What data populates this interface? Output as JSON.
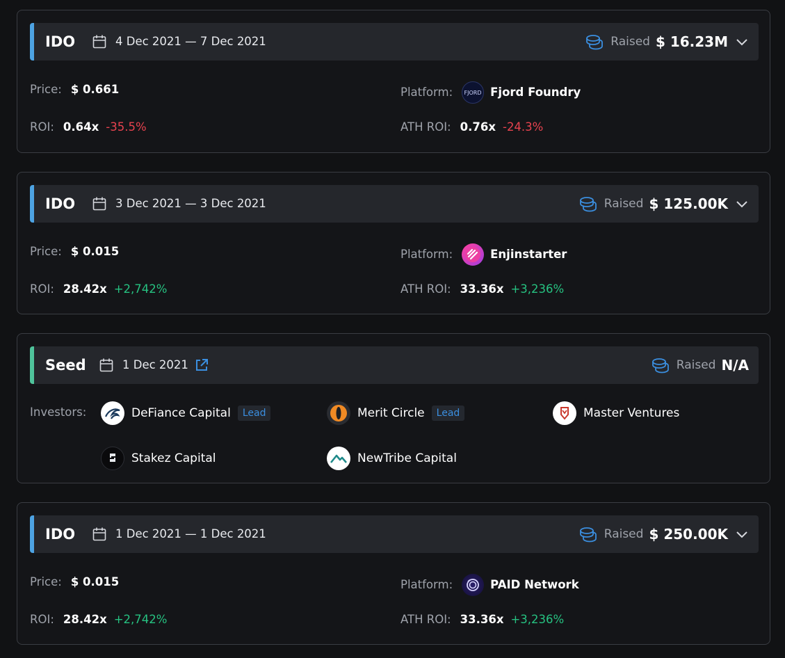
{
  "labels": {
    "price": "Price:",
    "platform": "Platform:",
    "roi": "ROI:",
    "ath_roi": "ATH ROI:",
    "raised": "Raised",
    "investors": "Investors:",
    "lead": "Lead"
  },
  "rounds": [
    {
      "type": "IDO",
      "dates": "4 Dec 2021 — 7 Dec 2021",
      "raised": "$ 16.23M",
      "price": "$ 0.661",
      "platform": "Fjord Foundry",
      "platform_icon": "fjord-foundry-logo",
      "roi": "0.64x",
      "roi_pct": "-35.5%",
      "ath_roi": "0.76x",
      "ath_roi_pct": "-24.3%"
    },
    {
      "type": "IDO",
      "dates": "3 Dec 2021 — 3 Dec 2021",
      "raised": "$ 125.00K",
      "price": "$ 0.015",
      "platform": "Enjinstarter",
      "platform_icon": "enjinstarter-logo",
      "roi": "28.42x",
      "roi_pct": "+2,742%",
      "ath_roi": "33.36x",
      "ath_roi_pct": "+3,236%"
    },
    {
      "type": "Seed",
      "dates": "1 Dec 2021",
      "raised": "N/A",
      "investors": [
        {
          "name": "DeFiance Capital",
          "lead": true,
          "icon": "defiance-capital-logo"
        },
        {
          "name": "Merit Circle",
          "lead": true,
          "icon": "merit-circle-logo"
        },
        {
          "name": "Master Ventures",
          "lead": false,
          "icon": "master-ventures-logo"
        },
        {
          "name": "Stakez Capital",
          "lead": false,
          "icon": "stakez-capital-logo"
        },
        {
          "name": "NewTribe Capital",
          "lead": false,
          "icon": "newtribe-capital-logo"
        }
      ]
    },
    {
      "type": "IDO",
      "dates": "1 Dec 2021 — 1 Dec 2021",
      "raised": "$ 250.00K",
      "price": "$ 0.015",
      "platform": "PAID Network",
      "platform_icon": "paid-network-logo",
      "roi": "28.42x",
      "roi_pct": "+2,742%",
      "ath_roi": "33.36x",
      "ath_roi_pct": "+3,236%"
    }
  ],
  "colors": {
    "background": "#111214",
    "header": "#25272c",
    "ido_accent": "#4da3e3",
    "seed_accent": "#4fc39b",
    "negative": "#e8434f",
    "positive": "#26c281",
    "lead_badge": "#3b8fe0"
  }
}
